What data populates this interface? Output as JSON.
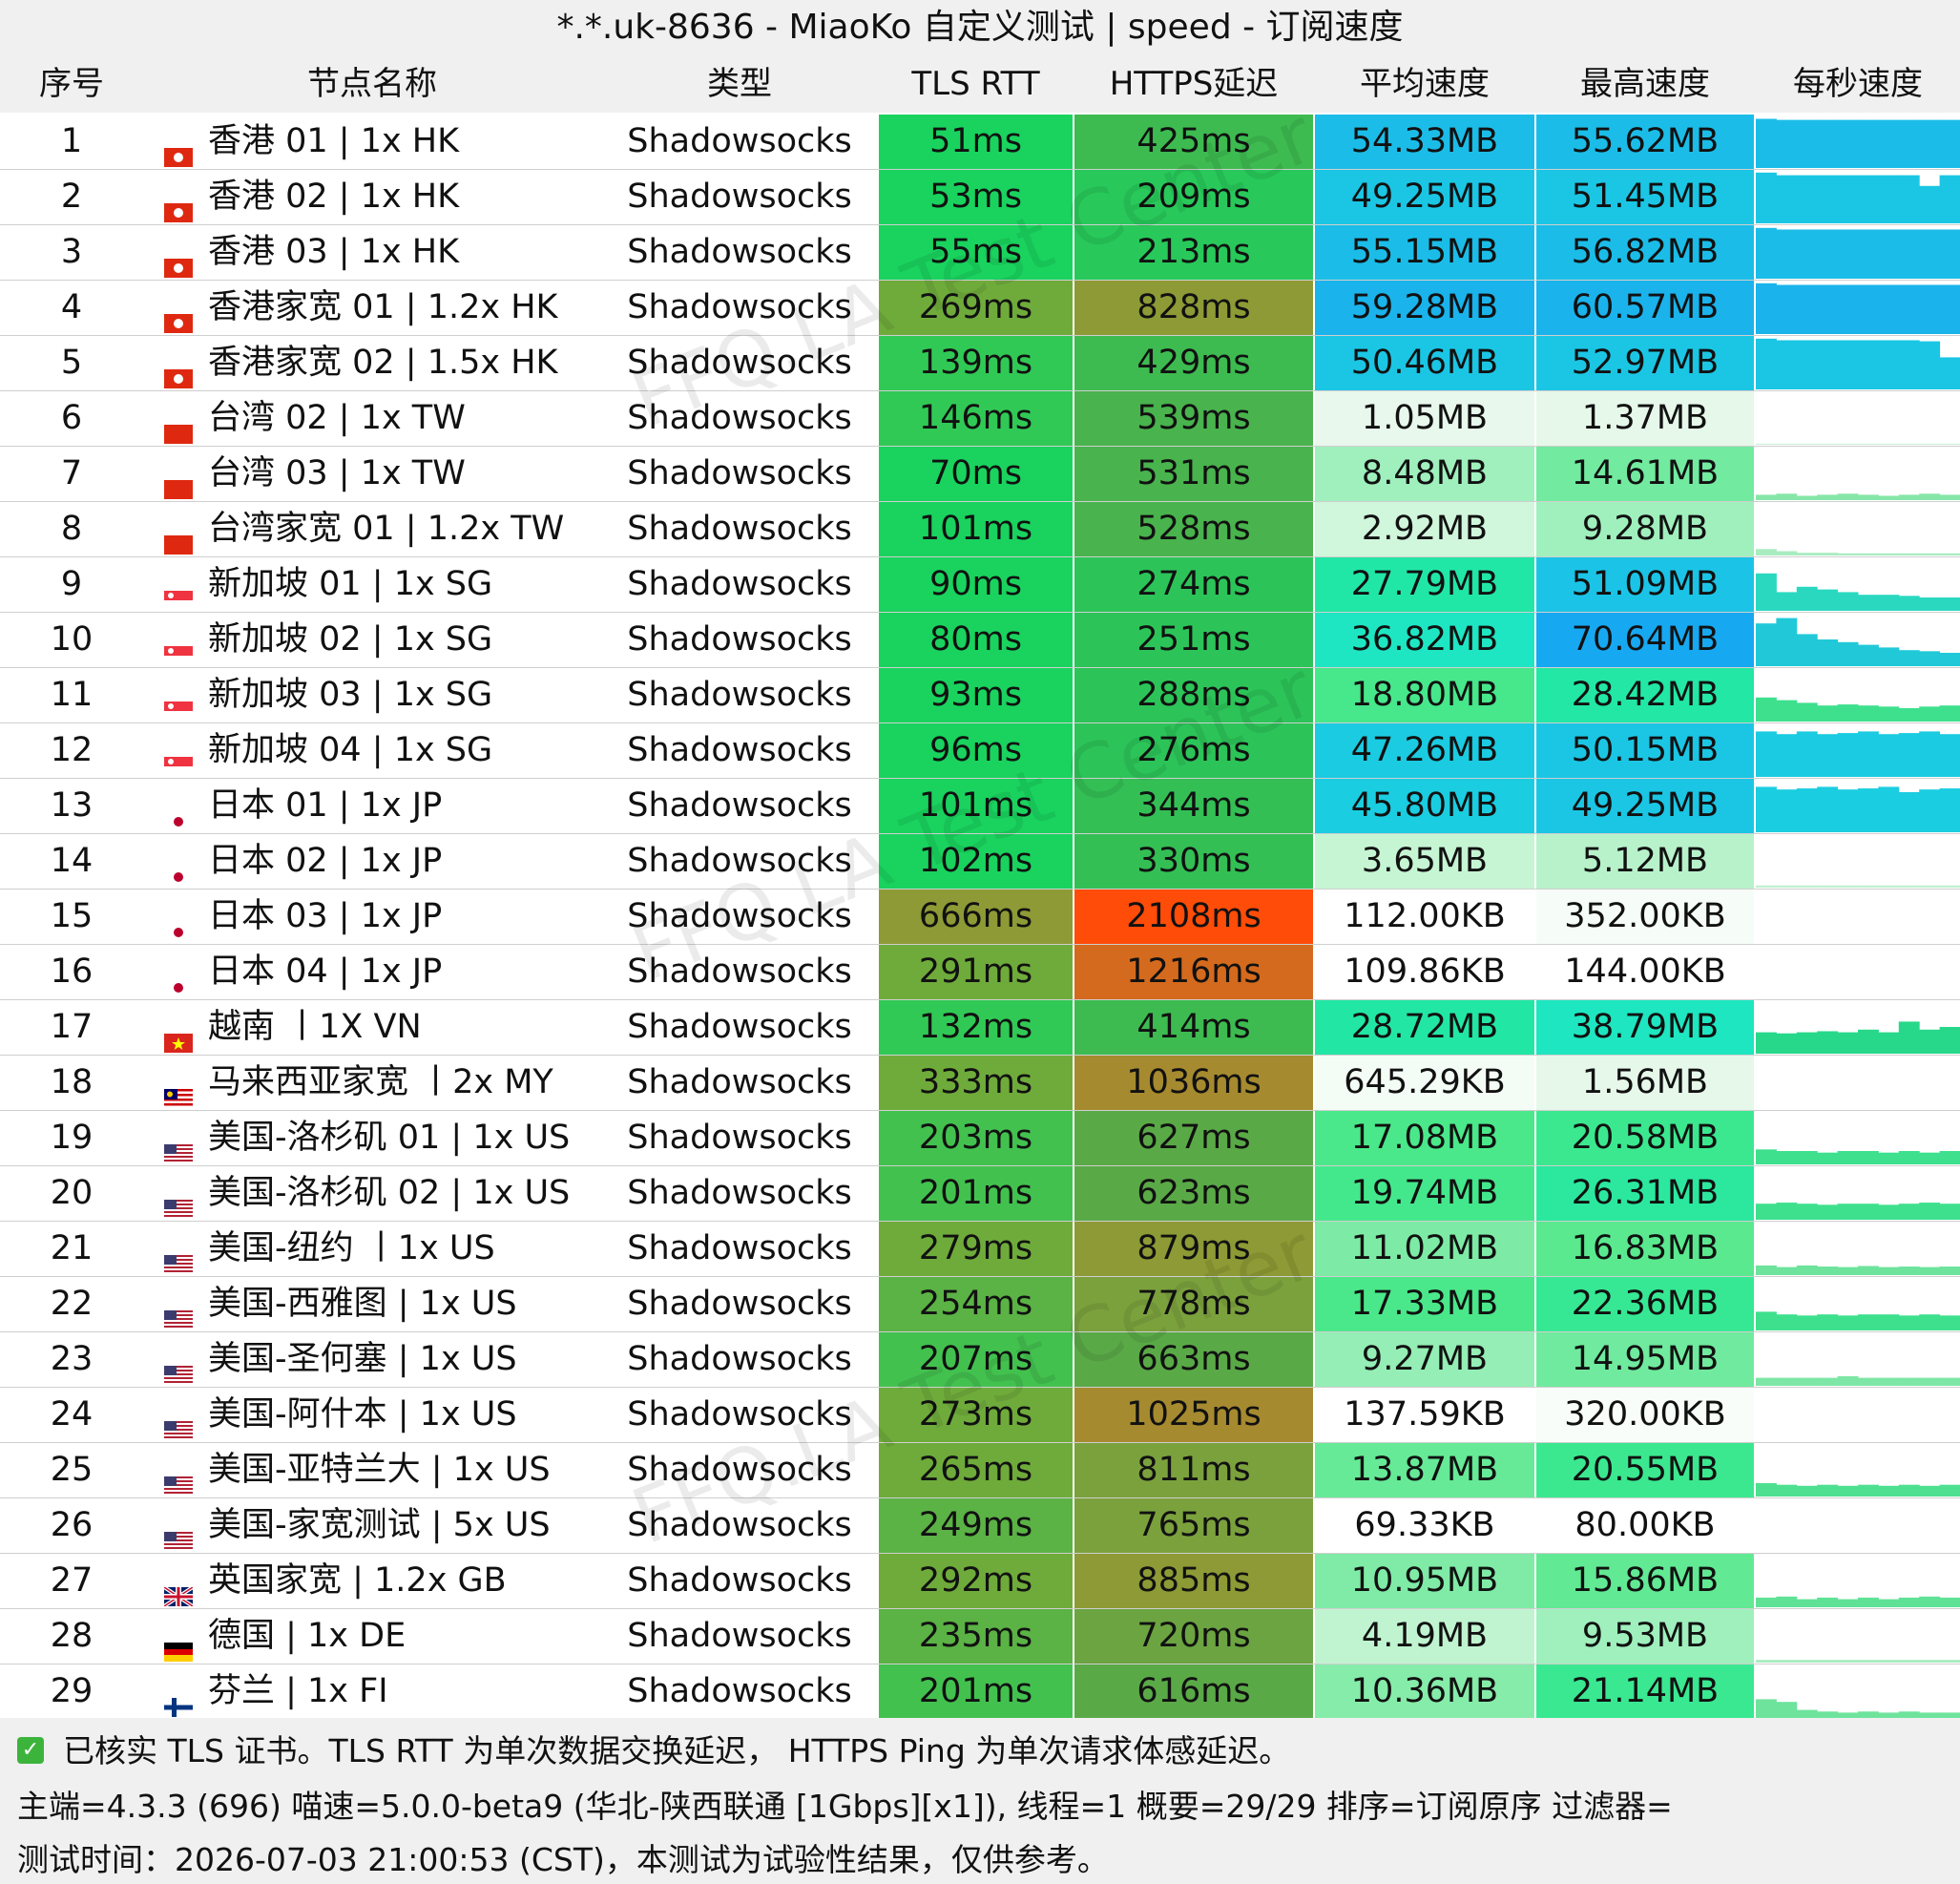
{
  "title": "*.*.uk-8636 - MiaoKo 自定义测试 | speed - 订阅速度",
  "headers": [
    "序号",
    "节点名称",
    "类型",
    "TLS RTT",
    "HTTPS延迟",
    "平均速度",
    "最高速度",
    "每秒速度"
  ],
  "watermark": "FFQ.LA Test Center",
  "rows": [
    {
      "idx": "1",
      "flag": "hk",
      "name": "香港 01 | 1x HK",
      "type": "Shadowsocks",
      "tls": "51ms",
      "https": "425ms",
      "avg": "54.33MB",
      "max": "55.62MB",
      "tls_color": "#19d35e",
      "https_color": "#3dbb50",
      "avg_color": "#1bbde8",
      "max_color": "#1bbde8",
      "spark": [
        0.92,
        0.9,
        0.9,
        0.9,
        0.9,
        0.9,
        0.9,
        0.9,
        0.9,
        0.9
      ],
      "spark_color": "#1bbde8"
    },
    {
      "idx": "2",
      "flag": "hk",
      "name": "香港 02 | 1x HK",
      "type": "Shadowsocks",
      "tls": "53ms",
      "https": "209ms",
      "avg": "49.25MB",
      "max": "51.45MB",
      "tls_color": "#19d35e",
      "https_color": "#28c95a",
      "avg_color": "#1bc6e4",
      "max_color": "#1bc6e4",
      "spark": [
        0.95,
        0.9,
        0.9,
        0.9,
        0.9,
        0.9,
        0.9,
        0.9,
        0.7,
        0.9
      ],
      "spark_color": "#1bc6e4"
    },
    {
      "idx": "3",
      "flag": "hk",
      "name": "香港 03 | 1x HK",
      "type": "Shadowsocks",
      "tls": "55ms",
      "https": "213ms",
      "avg": "55.15MB",
      "max": "56.82MB",
      "tls_color": "#19d35e",
      "https_color": "#28c95a",
      "avg_color": "#1bbde8",
      "max_color": "#1bbde8",
      "spark": [
        0.95,
        0.92,
        0.92,
        0.92,
        0.92,
        0.92,
        0.92,
        0.92,
        0.92,
        0.92
      ],
      "spark_color": "#1bbde8"
    },
    {
      "idx": "4",
      "flag": "hk",
      "name": "香港家宽 01 | 1.2x HK",
      "type": "Shadowsocks",
      "tls": "269ms",
      "https": "828ms",
      "avg": "59.28MB",
      "max": "60.57MB",
      "tls_color": "#6fab3b",
      "https_color": "#8e9a35",
      "avg_color": "#1ab3ec",
      "max_color": "#1ab3ec",
      "spark": [
        0.95,
        0.92,
        0.92,
        0.92,
        0.92,
        0.92,
        0.92,
        0.92,
        0.92,
        0.92
      ],
      "spark_color": "#1ab3ec"
    },
    {
      "idx": "5",
      "flag": "hk",
      "name": "香港家宽 02 | 1.5x HK",
      "type": "Shadowsocks",
      "tls": "139ms",
      "https": "429ms",
      "avg": "50.46MB",
      "max": "52.97MB",
      "tls_color": "#31c955",
      "https_color": "#3dbb50",
      "avg_color": "#1bc6e4",
      "max_color": "#1bc6e4",
      "spark": [
        0.95,
        0.92,
        0.92,
        0.92,
        0.92,
        0.92,
        0.92,
        0.92,
        0.9,
        0.6
      ],
      "spark_color": "#1bc6e4"
    },
    {
      "idx": "6",
      "flag": "tw",
      "name": "台湾 02 | 1x TW",
      "type": "Shadowsocks",
      "tls": "146ms",
      "https": "539ms",
      "avg": "1.05MB",
      "max": "1.37MB",
      "tls_color": "#31c955",
      "https_color": "#49b34d",
      "avg_color": "#e8f8ec",
      "max_color": "#e6f8ea",
      "spark": [
        0.02,
        0.02,
        0.02,
        0.02,
        0.02,
        0.02,
        0.02,
        0.02,
        0.02,
        0.02
      ],
      "spark_color": "#c8f0d4"
    },
    {
      "idx": "7",
      "flag": "tw",
      "name": "台湾 03 | 1x TW",
      "type": "Shadowsocks",
      "tls": "70ms",
      "https": "531ms",
      "avg": "8.48MB",
      "max": "14.61MB",
      "tls_color": "#19d35e",
      "https_color": "#49b34d",
      "avg_color": "#9ff0bd",
      "max_color": "#72eaa0",
      "spark": [
        0.1,
        0.12,
        0.08,
        0.1,
        0.12,
        0.1,
        0.08,
        0.1,
        0.12,
        0.1
      ],
      "spark_color": "#86e6a8"
    },
    {
      "idx": "8",
      "flag": "tw",
      "name": "台湾家宽 01 | 1.2x TW",
      "type": "Shadowsocks",
      "tls": "101ms",
      "https": "528ms",
      "avg": "2.92MB",
      "max": "9.28MB",
      "tls_color": "#19d35e",
      "https_color": "#49b34d",
      "avg_color": "#d0f6dc",
      "max_color": "#a0f0bd",
      "spark": [
        0.12,
        0.08,
        0.05,
        0.05,
        0.04,
        0.04,
        0.04,
        0.04,
        0.04,
        0.04
      ],
      "spark_color": "#a8ecc0"
    },
    {
      "idx": "9",
      "flag": "sg",
      "name": "新加坡 01 | 1x SG",
      "type": "Shadowsocks",
      "tls": "90ms",
      "https": "274ms",
      "avg": "27.79MB",
      "max": "51.09MB",
      "tls_color": "#19d35e",
      "https_color": "#2cc458",
      "avg_color": "#21e7a6",
      "max_color": "#1bc4e6",
      "spark": [
        0.7,
        0.35,
        0.45,
        0.4,
        0.35,
        0.3,
        0.3,
        0.28,
        0.25,
        0.25
      ],
      "spark_color": "#2ad8c0"
    },
    {
      "idx": "10",
      "flag": "sg",
      "name": "新加坡 02 | 1x SG",
      "type": "Shadowsocks",
      "tls": "80ms",
      "https": "251ms",
      "avg": "36.82MB",
      "max": "70.64MB",
      "tls_color": "#19d35e",
      "https_color": "#2cc458",
      "avg_color": "#1ee6c3",
      "max_color": "#17a8f2",
      "spark": [
        0.8,
        0.9,
        0.6,
        0.5,
        0.45,
        0.4,
        0.35,
        0.3,
        0.28,
        0.25
      ],
      "spark_color": "#21c9d8"
    },
    {
      "idx": "11",
      "flag": "sg",
      "name": "新加坡 03 | 1x SG",
      "type": "Shadowsocks",
      "tls": "93ms",
      "https": "288ms",
      "avg": "18.80MB",
      "max": "28.42MB",
      "tls_color": "#19d35e",
      "https_color": "#2cc458",
      "avg_color": "#47e78b",
      "max_color": "#22e7a5",
      "spark": [
        0.45,
        0.4,
        0.35,
        0.3,
        0.32,
        0.3,
        0.28,
        0.25,
        0.28,
        0.3
      ],
      "spark_color": "#3ee08e"
    },
    {
      "idx": "12",
      "flag": "sg",
      "name": "新加坡 04 | 1x SG",
      "type": "Shadowsocks",
      "tls": "96ms",
      "https": "276ms",
      "avg": "47.26MB",
      "max": "50.15MB",
      "tls_color": "#19d35e",
      "https_color": "#2cc458",
      "avg_color": "#1bcbe1",
      "max_color": "#1bc6e4",
      "spark": [
        0.85,
        0.8,
        0.85,
        0.8,
        0.82,
        0.85,
        0.8,
        0.82,
        0.85,
        0.8
      ],
      "spark_color": "#1bcbe1"
    },
    {
      "idx": "13",
      "flag": "jp",
      "name": "日本 01 | 1x JP",
      "type": "Shadowsocks",
      "tls": "101ms",
      "https": "344ms",
      "avg": "45.80MB",
      "max": "49.25MB",
      "tls_color": "#19d35e",
      "https_color": "#34bf55",
      "avg_color": "#1bcde0",
      "max_color": "#1bc6e4",
      "spark": [
        0.85,
        0.8,
        0.82,
        0.85,
        0.8,
        0.82,
        0.85,
        0.75,
        0.8,
        0.82
      ],
      "spark_color": "#1bcde0"
    },
    {
      "idx": "14",
      "flag": "jp",
      "name": "日本 02 | 1x JP",
      "type": "Shadowsocks",
      "tls": "102ms",
      "https": "330ms",
      "avg": "3.65MB",
      "max": "5.12MB",
      "tls_color": "#19d35e",
      "https_color": "#34bf55",
      "avg_color": "#c6f5d4",
      "max_color": "#b8f2cb",
      "spark": [
        0.04,
        0.04,
        0.04,
        0.04,
        0.04,
        0.04,
        0.04,
        0.04,
        0.04,
        0.04
      ],
      "spark_color": "#c0f0d0"
    },
    {
      "idx": "15",
      "flag": "jp",
      "name": "日本 03 | 1x JP",
      "type": "Shadowsocks",
      "tls": "666ms",
      "https": "2108ms",
      "avg": "112.00KB",
      "max": "352.00KB",
      "tls_color": "#8e9a35",
      "https_color": "#ff4c08",
      "avg_color": "#ffffff",
      "max_color": "#f6fdf8",
      "spark": [
        0,
        0,
        0,
        0,
        0,
        0,
        0,
        0,
        0,
        0
      ],
      "spark_color": "#ffffff"
    },
    {
      "idx": "16",
      "flag": "jp",
      "name": "日本 04 | 1x JP",
      "type": "Shadowsocks",
      "tls": "291ms",
      "https": "1216ms",
      "avg": "109.86KB",
      "max": "144.00KB",
      "tls_color": "#6fab3b",
      "https_color": "#d46a1d",
      "avg_color": "#ffffff",
      "max_color": "#ffffff",
      "spark": [
        0,
        0,
        0,
        0,
        0,
        0,
        0,
        0,
        0,
        0
      ],
      "spark_color": "#ffffff"
    },
    {
      "idx": "17",
      "flag": "vn",
      "name": "越南 丨1X VN",
      "type": "Shadowsocks",
      "tls": "132ms",
      "https": "414ms",
      "avg": "28.72MB",
      "max": "38.79MB",
      "tls_color": "#31c955",
      "https_color": "#3dbb50",
      "avg_color": "#22e7a4",
      "max_color": "#1ee6c0",
      "spark": [
        0.4,
        0.38,
        0.4,
        0.42,
        0.4,
        0.45,
        0.4,
        0.6,
        0.45,
        0.5
      ],
      "spark_color": "#28d88a"
    },
    {
      "idx": "18",
      "flag": "my",
      "name": "马来西亚家宽 丨2x MY",
      "type": "Shadowsocks",
      "tls": "333ms",
      "https": "1036ms",
      "avg": "645.29KB",
      "max": "1.56MB",
      "tls_color": "#6fab3b",
      "https_color": "#a68a2f",
      "avg_color": "#f4fcf6",
      "max_color": "#e6f8ea",
      "spark": [
        0,
        0,
        0,
        0,
        0,
        0,
        0,
        0,
        0,
        0
      ],
      "spark_color": "#ffffff"
    },
    {
      "idx": "19",
      "flag": "us",
      "name": "美国-洛杉矶 01 | 1x US",
      "type": "Shadowsocks",
      "tls": "203ms",
      "https": "627ms",
      "avg": "17.08MB",
      "max": "20.58MB",
      "tls_color": "#43c14f",
      "https_color": "#5aa947",
      "avg_color": "#4ae88a",
      "max_color": "#3be88f",
      "spark": [
        0.28,
        0.25,
        0.25,
        0.22,
        0.25,
        0.25,
        0.22,
        0.25,
        0.22,
        0.25
      ],
      "spark_color": "#3ee08e"
    },
    {
      "idx": "20",
      "flag": "us",
      "name": "美国-洛杉矶 02 | 1x US",
      "type": "Shadowsocks",
      "tls": "201ms",
      "https": "623ms",
      "avg": "19.74MB",
      "max": "26.31MB",
      "tls_color": "#43c14f",
      "https_color": "#5aa947",
      "avg_color": "#44e88c",
      "max_color": "#2be89e",
      "spark": [
        0.3,
        0.32,
        0.3,
        0.28,
        0.3,
        0.3,
        0.28,
        0.3,
        0.32,
        0.3
      ],
      "spark_color": "#3ee08e"
    },
    {
      "idx": "21",
      "flag": "us",
      "name": "美国-纽约 丨1x US",
      "type": "Shadowsocks",
      "tls": "279ms",
      "https": "879ms",
      "avg": "11.02MB",
      "max": "16.83MB",
      "tls_color": "#6fab3b",
      "https_color": "#8e9a35",
      "avg_color": "#7deba5",
      "max_color": "#5ae98f",
      "spark": [
        0.18,
        0.15,
        0.18,
        0.16,
        0.15,
        0.17,
        0.15,
        0.16,
        0.15,
        0.16
      ],
      "spark_color": "#6ee39c"
    },
    {
      "idx": "22",
      "flag": "us",
      "name": "美国-西雅图 | 1x US",
      "type": "Shadowsocks",
      "tls": "254ms",
      "https": "778ms",
      "avg": "17.33MB",
      "max": "22.36MB",
      "tls_color": "#5bb245",
      "https_color": "#7ba13d",
      "avg_color": "#4ae88a",
      "max_color": "#36e893",
      "spark": [
        0.35,
        0.3,
        0.28,
        0.3,
        0.28,
        0.3,
        0.3,
        0.28,
        0.3,
        0.28
      ],
      "spark_color": "#3ee08e"
    },
    {
      "idx": "23",
      "flag": "us",
      "name": "美国-圣何塞 | 1x US",
      "type": "Shadowsocks",
      "tls": "207ms",
      "https": "663ms",
      "avg": "9.27MB",
      "max": "14.95MB",
      "tls_color": "#43c14f",
      "https_color": "#5aa947",
      "avg_color": "#94eeb5",
      "max_color": "#70ea9e",
      "spark": [
        0.15,
        0.15,
        0.15,
        0.15,
        0.18,
        0.15,
        0.15,
        0.15,
        0.15,
        0.15
      ],
      "spark_color": "#7ee6a6"
    },
    {
      "idx": "24",
      "flag": "us",
      "name": "美国-阿什本 | 1x US",
      "type": "Shadowsocks",
      "tls": "273ms",
      "https": "1025ms",
      "avg": "137.59KB",
      "max": "320.00KB",
      "tls_color": "#6fab3b",
      "https_color": "#a68a2f",
      "avg_color": "#ffffff",
      "max_color": "#f8fdfa",
      "spark": [
        0,
        0,
        0,
        0,
        0,
        0,
        0,
        0,
        0,
        0
      ],
      "spark_color": "#ffffff"
    },
    {
      "idx": "25",
      "flag": "us",
      "name": "美国-亚特兰大 | 1x US",
      "type": "Shadowsocks",
      "tls": "265ms",
      "https": "811ms",
      "avg": "13.87MB",
      "max": "20.55MB",
      "tls_color": "#6fab3b",
      "https_color": "#7ba13d",
      "avg_color": "#66ea97",
      "max_color": "#3be88f",
      "spark": [
        0.25,
        0.22,
        0.2,
        0.22,
        0.2,
        0.22,
        0.2,
        0.22,
        0.2,
        0.22
      ],
      "spark_color": "#4ee090"
    },
    {
      "idx": "26",
      "flag": "us",
      "name": "美国-家宽测试 | 5x US",
      "type": "Shadowsocks",
      "tls": "249ms",
      "https": "765ms",
      "avg": "69.33KB",
      "max": "80.00KB",
      "tls_color": "#5bb245",
      "https_color": "#7ba13d",
      "avg_color": "#ffffff",
      "max_color": "#ffffff",
      "spark": [
        0,
        0,
        0,
        0,
        0,
        0,
        0,
        0,
        0,
        0
      ],
      "spark_color": "#ffffff"
    },
    {
      "idx": "27",
      "flag": "gb",
      "name": "英国家宽 | 1.2x GB",
      "type": "Shadowsocks",
      "tls": "292ms",
      "https": "885ms",
      "avg": "10.95MB",
      "max": "15.86MB",
      "tls_color": "#6fab3b",
      "https_color": "#8e9a35",
      "avg_color": "#7feba6",
      "max_color": "#62e994",
      "spark": [
        0.18,
        0.2,
        0.15,
        0.18,
        0.15,
        0.18,
        0.15,
        0.18,
        0.2,
        0.18
      ],
      "spark_color": "#5fe296"
    },
    {
      "idx": "28",
      "flag": "de",
      "name": "德国 | 1x DE",
      "type": "Shadowsocks",
      "tls": "235ms",
      "https": "720ms",
      "avg": "4.19MB",
      "max": "9.53MB",
      "tls_color": "#5bb245",
      "https_color": "#6ba441",
      "avg_color": "#c0f4d0",
      "max_color": "#9ff0bd",
      "spark": [
        0.05,
        0.05,
        0.05,
        0.05,
        0.05,
        0.05,
        0.05,
        0.05,
        0.05,
        0.05
      ],
      "spark_color": "#a8ecc0"
    },
    {
      "idx": "29",
      "flag": "fi",
      "name": "芬兰 | 1x FI",
      "type": "Shadowsocks",
      "tls": "201ms",
      "https": "616ms",
      "avg": "10.36MB",
      "max": "21.14MB",
      "tls_color": "#43c14f",
      "https_color": "#5aa947",
      "avg_color": "#86eca9",
      "max_color": "#39e891",
      "spark": [
        0.35,
        0.3,
        0.15,
        0.12,
        0.1,
        0.12,
        0.1,
        0.12,
        0.1,
        0.1
      ],
      "spark_color": "#6ee39c"
    }
  ],
  "footer": {
    "line1": "已核实 TLS 证书。TLS RTT 为单次数据交换延迟，  HTTPS Ping 为单次请求体感延迟。",
    "line2": "主端=4.3.3 (696) 喵速=5.0.0-beta9 (󠁿华北-陕西联通 [1Gbps][x1]), 线程=1 概要=29/29 排序=订阅原序 过滤器=",
    "line3": "测试时间：2026-07-03 21:00:53 (CST)，本测试为试验性结果，仅供参考。"
  }
}
